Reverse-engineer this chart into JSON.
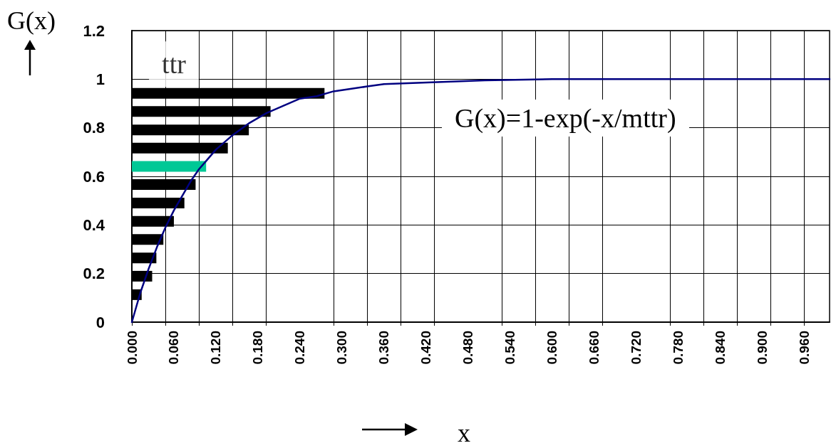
{
  "chart_data": {
    "type": "bar",
    "xlabel": "x",
    "ylabel": "G(x)",
    "annotations": [
      "G(x)=1-exp(-x/mttr)"
    ],
    "xlim": [
      0,
      0.996
    ],
    "ylim": [
      0,
      1.2
    ],
    "xticks": [
      {
        "value": 0,
        "label": "0.000"
      },
      {
        "value": 0.06,
        "label": "0.060"
      },
      {
        "value": 0.12,
        "label": "0.120"
      },
      {
        "value": 0.18,
        "label": "0.180"
      },
      {
        "value": 0.24,
        "label": "0.240"
      },
      {
        "value": 0.3,
        "label": "0.300"
      },
      {
        "value": 0.36,
        "label": "0.360"
      },
      {
        "value": 0.42,
        "label": "0.420"
      },
      {
        "value": 0.48,
        "label": "0.480"
      },
      {
        "value": 0.54,
        "label": "0.540"
      },
      {
        "value": 0.6,
        "label": "0.600"
      },
      {
        "value": 0.66,
        "label": "0.660"
      },
      {
        "value": 0.72,
        "label": "0.720"
      },
      {
        "value": 0.78,
        "label": "0.780"
      },
      {
        "value": 0.84,
        "label": "0.840"
      },
      {
        "value": 0.9,
        "label": "0.900"
      },
      {
        "value": 0.96,
        "label": "0.960"
      },
      {
        "value": 0.048,
        "label": null
      },
      {
        "value": 0.096,
        "label": null
      },
      {
        "value": 0.144,
        "label": null
      },
      {
        "value": 0.192,
        "label": null
      },
      {
        "value": 0.288,
        "label": null
      },
      {
        "value": 0.336,
        "label": null
      },
      {
        "value": 0.384,
        "label": null
      },
      {
        "value": 0.432,
        "label": null
      },
      {
        "value": 0.528,
        "label": null
      },
      {
        "value": 0.576,
        "label": null
      },
      {
        "value": 0.624,
        "label": null
      },
      {
        "value": 0.672,
        "label": null
      },
      {
        "value": 0.768,
        "label": null
      },
      {
        "value": 0.816,
        "label": null
      },
      {
        "value": 0.864,
        "label": null
      },
      {
        "value": 0.912,
        "label": null
      }
    ],
    "yticks": [
      0,
      0.2,
      0.4,
      0.6,
      0.8,
      1,
      1.2
    ],
    "grid": true,
    "orientation": "horizontal",
    "legend": false,
    "marker": "none",
    "line_style": "solid",
    "series": [
      {
        "name": "ttr",
        "x": [
          0.942,
          0.867,
          0.791,
          0.716,
          0.641,
          0.566,
          0.49,
          0.415,
          0.34,
          0.264,
          0.189,
          0.113
        ],
        "values": [
          0.275,
          0.198,
          0.167,
          0.137,
          0.106,
          0.091,
          0.075,
          0.06,
          0.045,
          0.035,
          0.029,
          0.014
        ],
        "colors": [
          "#000000",
          "#000000",
          "#000000",
          "#000000",
          "#00c896",
          "#000000",
          "#000000",
          "#000000",
          "#000000",
          "#000000",
          "#000000",
          "#000000"
        ]
      },
      {
        "type": "line",
        "color": "#000080",
        "values": [
          0,
          0.012,
          0.024,
          0.036,
          0.048,
          0.06,
          0.072,
          0.084,
          0.096,
          0.108,
          0.12,
          0.144,
          0.168,
          0.192,
          0.216,
          0.24,
          0.264,
          0.288,
          0.312,
          0.336,
          0.36,
          0.408,
          0.456,
          0.504,
          0.6,
          0.7,
          0.8,
          0.9,
          0.996
        ],
        "x": [
          0,
          0.12,
          0.22,
          0.31,
          0.39,
          0.46,
          0.52,
          0.58,
          0.63,
          0.67,
          0.71,
          0.77,
          0.82,
          0.86,
          0.89,
          0.92,
          0.93,
          0.95,
          0.96,
          0.97,
          0.98,
          0.985,
          0.99,
          0.995,
          1,
          1,
          1,
          1,
          1
        ]
      }
    ]
  }
}
